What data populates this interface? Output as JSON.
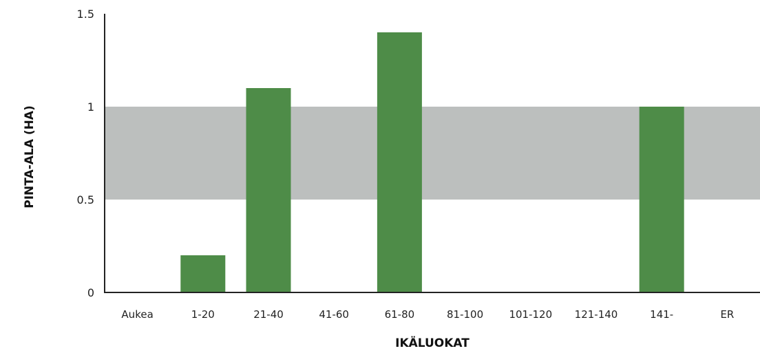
{
  "chart_data": {
    "type": "bar",
    "title": "",
    "xlabel": "IKÄLUOKAT",
    "ylabel": "PINTA-ALA (HA)",
    "categories": [
      "Aukea",
      "1-20",
      "21-40",
      "41-60",
      "61-80",
      "81-100",
      "101-120",
      "121-140",
      "141-",
      "ER"
    ],
    "values": [
      0,
      0.2,
      1.1,
      0,
      1.4,
      0,
      0,
      0,
      1.0,
      0
    ],
    "ylim": [
      0,
      1.5
    ],
    "yticks": [
      0,
      0.5,
      1,
      1.5
    ],
    "ytick_labels": [
      "0",
      "0.5",
      "1",
      "1.5"
    ],
    "target_band": [
      0.5,
      1.0
    ],
    "grid": false,
    "legend": "none",
    "colors": {
      "bar": "#4e8c48",
      "band": "#bcbfbe",
      "axis": "#222222"
    }
  }
}
